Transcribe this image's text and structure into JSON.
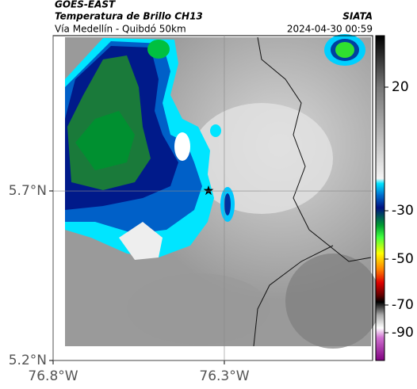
{
  "header": {
    "source": "GOES-EAST",
    "title": "Temperatura de Brillo CH13",
    "subtitle": "Vía Medellín - Quibdó 50km",
    "org": "SIATA",
    "datetime": "2024-04-30 00:59"
  },
  "map": {
    "xlim": [
      -76.8,
      -75.867
    ],
    "ylim": [
      5.2,
      6.158
    ],
    "xticks": [
      {
        "value": -76.8,
        "label": "76.8°W"
      },
      {
        "value": -76.3,
        "label": "76.3°W"
      }
    ],
    "yticks": [
      {
        "value": 5.2,
        "label": "5.2°N"
      },
      {
        "value": 5.7,
        "label": "5.7°N"
      }
    ]
  },
  "colorbar": {
    "clim": [
      -110,
      41
    ],
    "ticks": [
      20,
      -30,
      -50,
      -70,
      -90
    ]
  }
}
